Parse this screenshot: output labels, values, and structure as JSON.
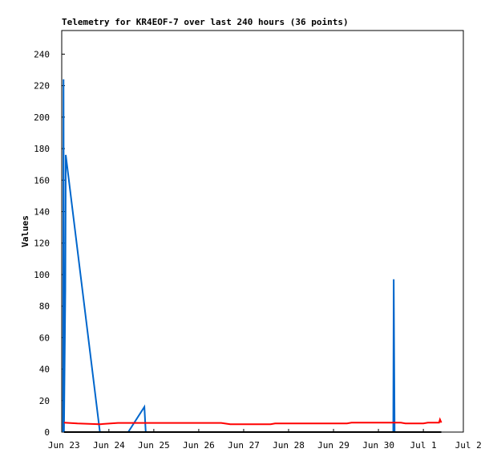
{
  "chart_data": {
    "type": "line",
    "title": "Telemetry for KR4EOF-7 over last 240 hours (36 points)",
    "y_label": "Values",
    "xlim": [
      -0.05,
      8.89
    ],
    "xticks": [
      {
        "value": 0,
        "label": "Jun 23"
      },
      {
        "value": 1,
        "label": "Jun 24"
      },
      {
        "value": 2,
        "label": "Jun 25"
      },
      {
        "value": 3,
        "label": "Jun 26"
      },
      {
        "value": 4,
        "label": "Jun 27"
      },
      {
        "value": 5,
        "label": "Jun 28"
      },
      {
        "value": 6,
        "label": "Jun 29"
      },
      {
        "value": 7,
        "label": "Jun 30"
      },
      {
        "value": 8,
        "label": "Jul 1"
      },
      {
        "value": 9,
        "label": "Jul 2"
      }
    ],
    "ylim": [
      0,
      255
    ],
    "yticks": [
      0,
      20,
      40,
      60,
      80,
      100,
      120,
      140,
      160,
      180,
      200,
      220,
      240
    ],
    "series": [
      {
        "color": "#0066cc",
        "x": [
          -0.02,
          -0.01,
          0.0,
          0.03,
          0.04,
          0.8,
          1.43,
          1.79,
          1.82,
          7.33,
          7.34,
          7.35,
          7.36,
          8.4
        ],
        "values": [
          0,
          224,
          0,
          90,
          176,
          0,
          0,
          16,
          0,
          0,
          97,
          48,
          0,
          0
        ]
      },
      {
        "color": "#ff0000",
        "x": [
          0.0,
          0.3,
          0.8,
          1.2,
          3.5,
          3.7,
          4.6,
          4.7,
          6.3,
          6.4,
          7.5,
          7.6,
          8.0,
          8.1,
          8.35,
          8.37,
          8.4
        ],
        "values": [
          6,
          5.5,
          5,
          5.8,
          5.8,
          5,
          5,
          5.5,
          5.5,
          6,
          6,
          5.5,
          5.5,
          6,
          6,
          8,
          6
        ]
      },
      {
        "color": "#000000",
        "x": [
          0.0,
          8.4
        ],
        "values": [
          0,
          0
        ]
      }
    ]
  }
}
